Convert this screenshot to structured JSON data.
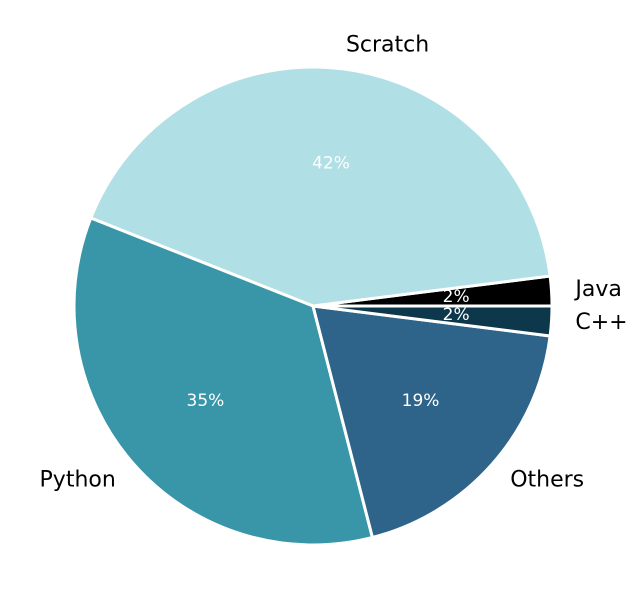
{
  "chart_data": {
    "type": "pie",
    "title": "",
    "direction": "counterclockwise",
    "start_angle_deg": 0,
    "slices": [
      {
        "label": "Java",
        "value": 2,
        "display": "2%",
        "color": "#000000"
      },
      {
        "label": "Scratch",
        "value": 42,
        "display": "42%",
        "color": "#b0dfe5"
      },
      {
        "label": "Python",
        "value": 35,
        "display": "35%",
        "color": "#3896a8"
      },
      {
        "label": "Others",
        "value": 19,
        "display": "19%",
        "color": "#2e6489"
      },
      {
        "label": "C++",
        "value": 2,
        "display": "2%",
        "color": "#0d374b"
      }
    ]
  }
}
